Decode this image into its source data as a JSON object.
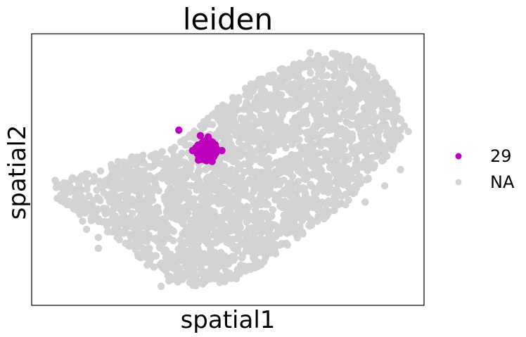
{
  "chart_data": {
    "type": "scatter",
    "title": "leiden",
    "xlabel": "spatial1",
    "ylabel": "spatial2",
    "xlim": [
      0,
      100
    ],
    "ylim": [
      0,
      100
    ],
    "grid": false,
    "legend_position": "right",
    "series": [
      {
        "name": "NA",
        "color": "#d3d3d3",
        "region": {
          "polygon": [
            [
              6,
              45
            ],
            [
              14,
              49
            ],
            [
              26,
              55
            ],
            [
              35,
              57
            ],
            [
              47,
              72
            ],
            [
              56,
              82
            ],
            [
              68,
              90
            ],
            [
              77,
              93
            ],
            [
              86,
              90
            ],
            [
              93,
              77
            ],
            [
              95,
              63
            ],
            [
              89,
              52
            ],
            [
              82,
              40
            ],
            [
              70,
              27
            ],
            [
              60,
              16
            ],
            [
              50,
              8
            ],
            [
              39,
              7
            ],
            [
              30,
              14
            ],
            [
              24,
              22
            ],
            [
              18,
              28
            ],
            [
              11,
              34
            ],
            [
              6,
              40
            ]
          ],
          "count": 2600
        },
        "points": [
          [
            95,
            66
          ],
          [
            96,
            64
          ],
          [
            88,
            80
          ],
          [
            85,
            84
          ],
          [
            78,
            92
          ],
          [
            73,
            92
          ],
          [
            71,
            93
          ],
          [
            47,
            23
          ],
          [
            44,
            19
          ],
          [
            39,
            16
          ],
          [
            37,
            14
          ],
          [
            35,
            9
          ],
          [
            33,
            7
          ],
          [
            17,
            25
          ],
          [
            14,
            28
          ],
          [
            13,
            31
          ],
          [
            17,
            21
          ],
          [
            13,
            46
          ],
          [
            8,
            39
          ],
          [
            6,
            46
          ],
          [
            47,
            17
          ],
          [
            42,
            11
          ],
          [
            50,
            11
          ],
          [
            20,
            38
          ],
          [
            21,
            41
          ],
          [
            85,
            38
          ],
          [
            82,
            50
          ],
          [
            88,
            84
          ],
          [
            84,
            80
          ],
          [
            89,
            58
          ],
          [
            94,
            50
          ],
          [
            90,
            44
          ],
          [
            80,
            37
          ],
          [
            59,
            24
          ],
          [
            55,
            20
          ],
          [
            30,
            21
          ],
          [
            25,
            26
          ],
          [
            20,
            31
          ],
          [
            15,
            36
          ],
          [
            29,
            45
          ],
          [
            35,
            48
          ],
          [
            40,
            62
          ],
          [
            46,
            70
          ],
          [
            52,
            75
          ],
          [
            58,
            81
          ],
          [
            64,
            86
          ],
          [
            70,
            88
          ],
          [
            76,
            88
          ],
          [
            82,
            84
          ],
          [
            87,
            77
          ],
          [
            90,
            70
          ],
          [
            92,
            62
          ],
          [
            88,
            55
          ],
          [
            80,
            45
          ],
          [
            74,
            38
          ],
          [
            66,
            30
          ],
          [
            22,
            51
          ],
          [
            27,
            54
          ]
        ]
      },
      {
        "name": "29",
        "color": "#bd00bd",
        "region": {
          "center": [
            44.5,
            57
          ],
          "rx": 2.8,
          "ry": 3.8,
          "count": 150
        },
        "points": [
          [
            37.5,
            64.5
          ],
          [
            43,
            62.5
          ],
          [
            45,
            62
          ],
          [
            41,
            57
          ],
          [
            48.5,
            57
          ],
          [
            42.5,
            53.5
          ],
          [
            46,
            53
          ]
        ]
      }
    ],
    "legend": [
      {
        "label": "29",
        "color": "#bd00bd"
      },
      {
        "label": "NA",
        "color": "#d3d3d3"
      }
    ]
  }
}
